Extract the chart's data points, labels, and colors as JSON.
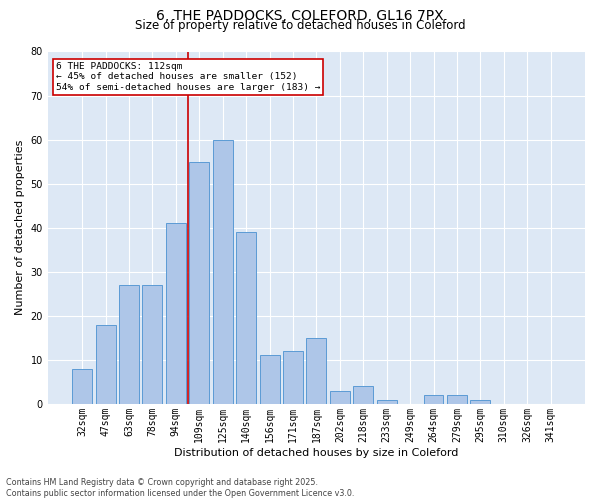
{
  "title1": "6, THE PADDOCKS, COLEFORD, GL16 7PX",
  "title2": "Size of property relative to detached houses in Coleford",
  "xlabel": "Distribution of detached houses by size in Coleford",
  "ylabel": "Number of detached properties",
  "categories": [
    "32sqm",
    "47sqm",
    "63sqm",
    "78sqm",
    "94sqm",
    "109sqm",
    "125sqm",
    "140sqm",
    "156sqm",
    "171sqm",
    "187sqm",
    "202sqm",
    "218sqm",
    "233sqm",
    "249sqm",
    "264sqm",
    "279sqm",
    "295sqm",
    "310sqm",
    "326sqm",
    "341sqm"
  ],
  "values": [
    8,
    18,
    27,
    27,
    41,
    55,
    60,
    39,
    11,
    12,
    15,
    3,
    4,
    1,
    0,
    2,
    2,
    1,
    0,
    0,
    0
  ],
  "bar_color": "#aec6e8",
  "bar_edge_color": "#5b9bd5",
  "vline_x_index": 5,
  "vline_color": "#cc0000",
  "annotation_text": "6 THE PADDOCKS: 112sqm\n← 45% of detached houses are smaller (152)\n54% of semi-detached houses are larger (183) →",
  "annotation_box_color": "#ffffff",
  "annotation_box_edge": "#cc0000",
  "bg_color": "#dde8f5",
  "grid_color": "#ffffff",
  "footnote": "Contains HM Land Registry data © Crown copyright and database right 2025.\nContains public sector information licensed under the Open Government Licence v3.0.",
  "ylim": [
    0,
    80
  ],
  "yticks": [
    0,
    10,
    20,
    30,
    40,
    50,
    60,
    70,
    80
  ],
  "title1_fontsize": 10,
  "title2_fontsize": 8.5,
  "ylabel_fontsize": 8,
  "xlabel_fontsize": 8,
  "tick_fontsize": 7,
  "annot_fontsize": 6.8,
  "footnote_fontsize": 5.8
}
